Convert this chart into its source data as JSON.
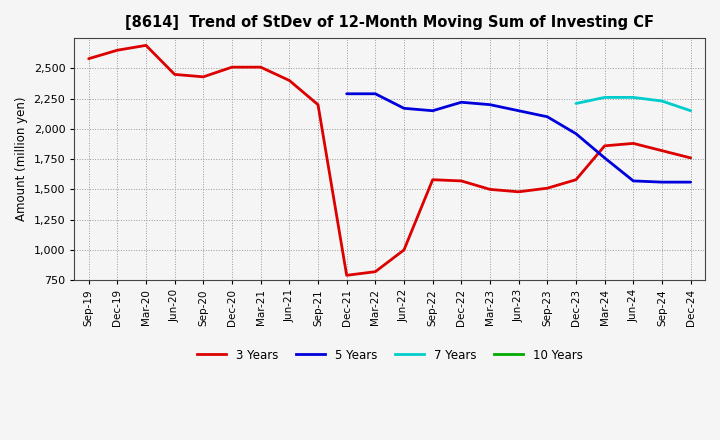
{
  "title": "[8614]  Trend of StDev of 12-Month Moving Sum of Investing CF",
  "ylabel": "Amount (million yen)",
  "background_color": "#f5f5f5",
  "grid_color": "#999999",
  "ylim": [
    750,
    2750
  ],
  "yticks": [
    750,
    1000,
    1250,
    1500,
    1750,
    2000,
    2250,
    2500
  ],
  "x_labels": [
    "Sep-19",
    "Dec-19",
    "Mar-20",
    "Jun-20",
    "Sep-20",
    "Dec-20",
    "Mar-21",
    "Jun-21",
    "Sep-21",
    "Dec-21",
    "Mar-22",
    "Jun-22",
    "Sep-22",
    "Dec-22",
    "Mar-23",
    "Jun-23",
    "Sep-23",
    "Dec-23",
    "Mar-24",
    "Jun-24",
    "Sep-24",
    "Dec-24"
  ],
  "series_order": [
    "3 Years",
    "5 Years",
    "7 Years",
    "10 Years"
  ],
  "series": {
    "3 Years": {
      "color": "#dd0000",
      "linewidth": 2.0,
      "data_x": [
        0,
        1,
        2,
        3,
        4,
        5,
        6,
        7,
        8,
        9,
        10,
        11,
        12,
        13,
        14,
        15,
        16,
        17,
        18,
        19,
        20,
        21
      ],
      "data_y": [
        2580,
        2650,
        2690,
        2450,
        2430,
        2510,
        2510,
        2400,
        2200,
        790,
        820,
        1000,
        1580,
        1570,
        1500,
        1480,
        1510,
        1580,
        1860,
        1880,
        1820,
        1760
      ]
    },
    "5 Years": {
      "color": "#0000dd",
      "linewidth": 2.0,
      "data_x": [
        9,
        10,
        11,
        12,
        13,
        14,
        15,
        16,
        17,
        18,
        19,
        20,
        21
      ],
      "data_y": [
        2290,
        2290,
        2170,
        2150,
        2220,
        2200,
        2150,
        2100,
        1960,
        1760,
        1570,
        1560,
        1560
      ]
    },
    "7 Years": {
      "color": "#00cccc",
      "linewidth": 2.0,
      "data_x": [
        17,
        18,
        19,
        20,
        21
      ],
      "data_y": [
        2210,
        2260,
        2260,
        2230,
        2150
      ]
    },
    "10 Years": {
      "color": "#00aa00",
      "linewidth": 2.0,
      "data_x": [],
      "data_y": []
    }
  },
  "legend_labels": [
    "3 Years",
    "5 Years",
    "7 Years",
    "10 Years"
  ],
  "legend_colors": [
    "#dd0000",
    "#0000dd",
    "#00cccc",
    "#00aa00"
  ]
}
